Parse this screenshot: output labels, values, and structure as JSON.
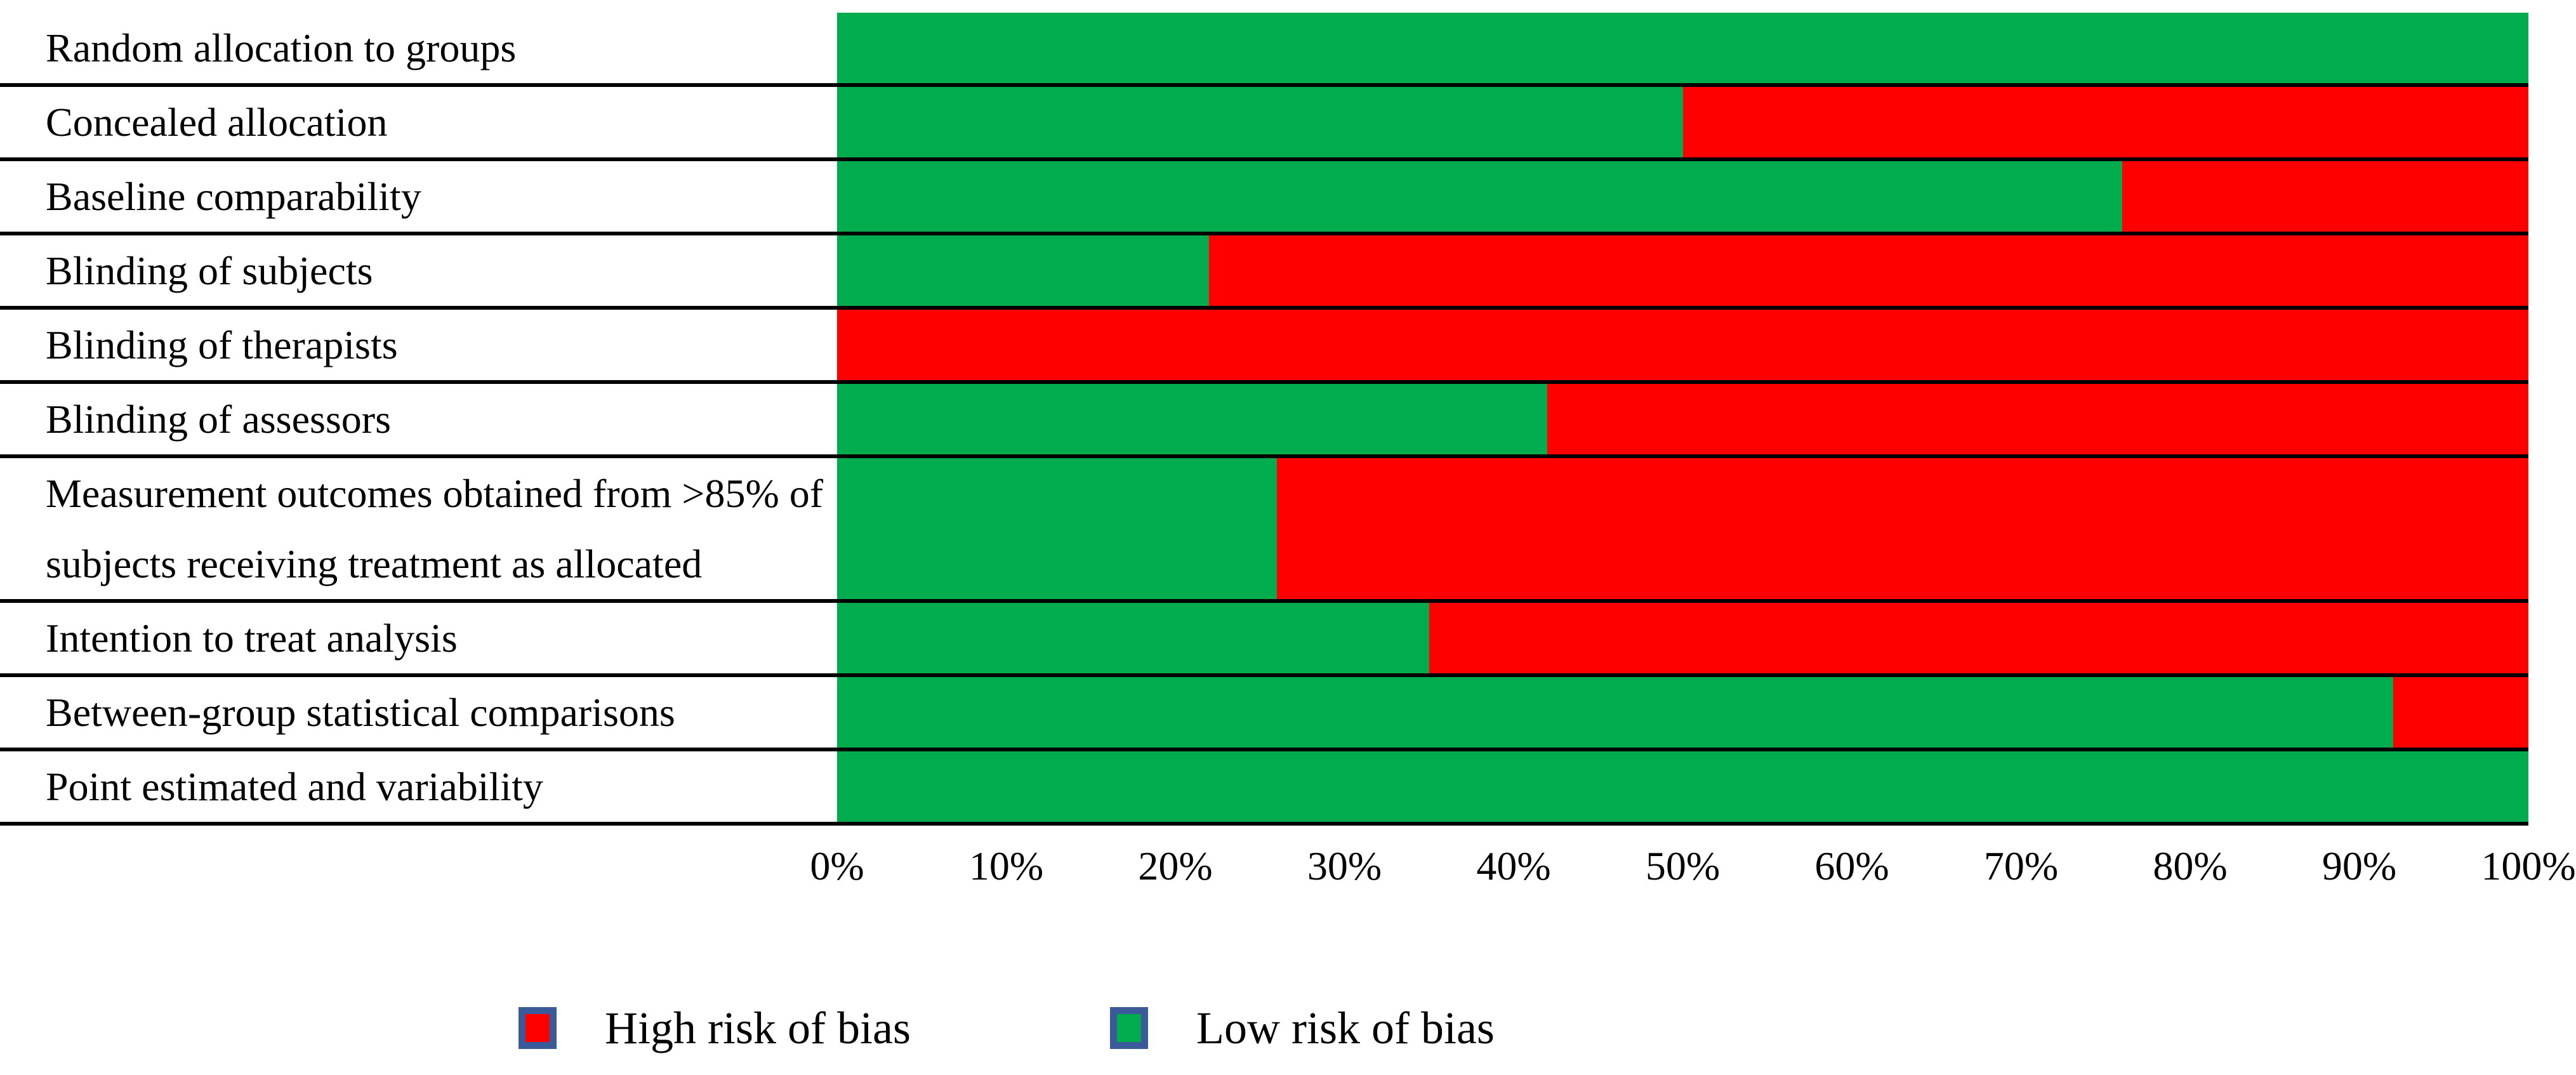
{
  "chart_data": {
    "type": "bar",
    "orientation": "horizontal-stacked",
    "title": "",
    "xlabel": "",
    "ylabel": "",
    "categories": [
      "Random allocation to groups",
      "Concealed allocation",
      "Baseline comparability",
      "Blinding of subjects",
      "Blinding of therapists",
      "Blinding of assessors",
      "Measurement outcomes obtained from >85% of subjects receiving treatment as allocated",
      "Intention to treat analysis",
      "Between-group statistical comparisons",
      "Point estimated and variability"
    ],
    "series": [
      {
        "name": "Low risk of bias",
        "color": "#00AC4E",
        "values": [
          100,
          50,
          76,
          22,
          0,
          42,
          26,
          35,
          92,
          100
        ]
      },
      {
        "name": "High risk of bias",
        "color": "#FF0000",
        "values": [
          0,
          50,
          24,
          78,
          100,
          58,
          74,
          65,
          8,
          0
        ]
      }
    ],
    "x_axis": {
      "range": [
        0,
        100
      ],
      "ticks": [
        "0%",
        "10%",
        "20%",
        "30%",
        "40%",
        "50%",
        "60%",
        "70%",
        "80%",
        "90%",
        "100%"
      ]
    },
    "grid": "row-divider-lines-only",
    "legend": {
      "position": "bottom",
      "swatch_border_color": "#3A5A99",
      "items": [
        {
          "label": "High risk of bias",
          "color": "#FF0000"
        },
        {
          "label": "Low risk of bias",
          "color": "#00AC4E"
        }
      ]
    }
  }
}
